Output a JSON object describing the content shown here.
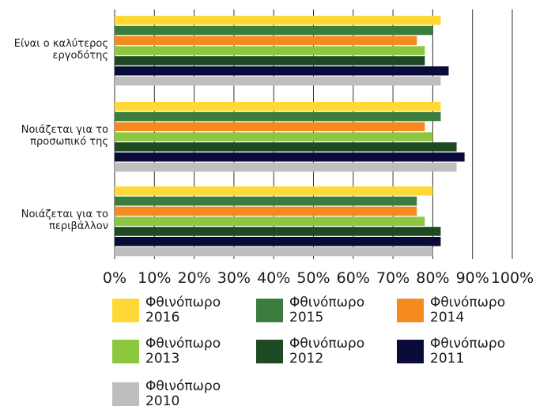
{
  "chart_data": {
    "type": "bar",
    "orientation": "horizontal",
    "categories": [
      "Είναι ο καλύτερος εργοδότης",
      "Νοιάζεται για το προσωπικό της",
      "Νοιάζεται για το περιβάλλον"
    ],
    "category_lines": [
      [
        "Είναι ο καλύτερος",
        "εργοδότης"
      ],
      [
        "Νοιάζεται για το",
        "προσωπικό της"
      ],
      [
        "Νοιάζεται για το",
        "περιβάλλον"
      ]
    ],
    "series": [
      {
        "name": "Φθινόπωρο 2016",
        "color": "#FFD835",
        "values": [
          82,
          82,
          80
        ]
      },
      {
        "name": "Φθινόπωρο 2015",
        "color": "#3B7D3C",
        "values": [
          80,
          82,
          76
        ]
      },
      {
        "name": "Φθινόπωρο 2014",
        "color": "#F58A20",
        "values": [
          76,
          78,
          76
        ]
      },
      {
        "name": "Φθινόπωρο 2013",
        "color": "#8DC63F",
        "values": [
          78,
          80,
          78
        ]
      },
      {
        "name": "Φθινόπωρο 2012",
        "color": "#1E4A22",
        "values": [
          78,
          86,
          82
        ]
      },
      {
        "name": "Φθινόπωρο 2011",
        "color": "#0B0B3B",
        "values": [
          84,
          88,
          82
        ]
      },
      {
        "name": "Φθινόπωρο 2010",
        "color": "#BEBEBE",
        "values": [
          82,
          86,
          80
        ]
      }
    ],
    "x_ticks": [
      "0%",
      "10%",
      "20%",
      "30%",
      "40%",
      "50%",
      "60%",
      "70%",
      "80%",
      "90%",
      "100%"
    ],
    "xlim": [
      0,
      100
    ],
    "grid": true,
    "legend_position": "bottom"
  },
  "legend": {
    "items": [
      {
        "line1": "Φθινόπωρο",
        "line2": "2016",
        "color": "#FFD835"
      },
      {
        "line1": "Φθινόπωρο",
        "line2": "2015",
        "color": "#3B7D3C"
      },
      {
        "line1": "Φθινόπωρο",
        "line2": "2014",
        "color": "#F58A20"
      },
      {
        "line1": "Φθινόπωρο",
        "line2": "2013",
        "color": "#8DC63F"
      },
      {
        "line1": "Φθινόπωρο",
        "line2": "2012",
        "color": "#1E4A22"
      },
      {
        "line1": "Φθινόπωρο",
        "line2": "2011",
        "color": "#0B0B3B"
      },
      {
        "line1": "Φθινόπωρο",
        "line2": "2010",
        "color": "#BEBEBE"
      }
    ]
  }
}
